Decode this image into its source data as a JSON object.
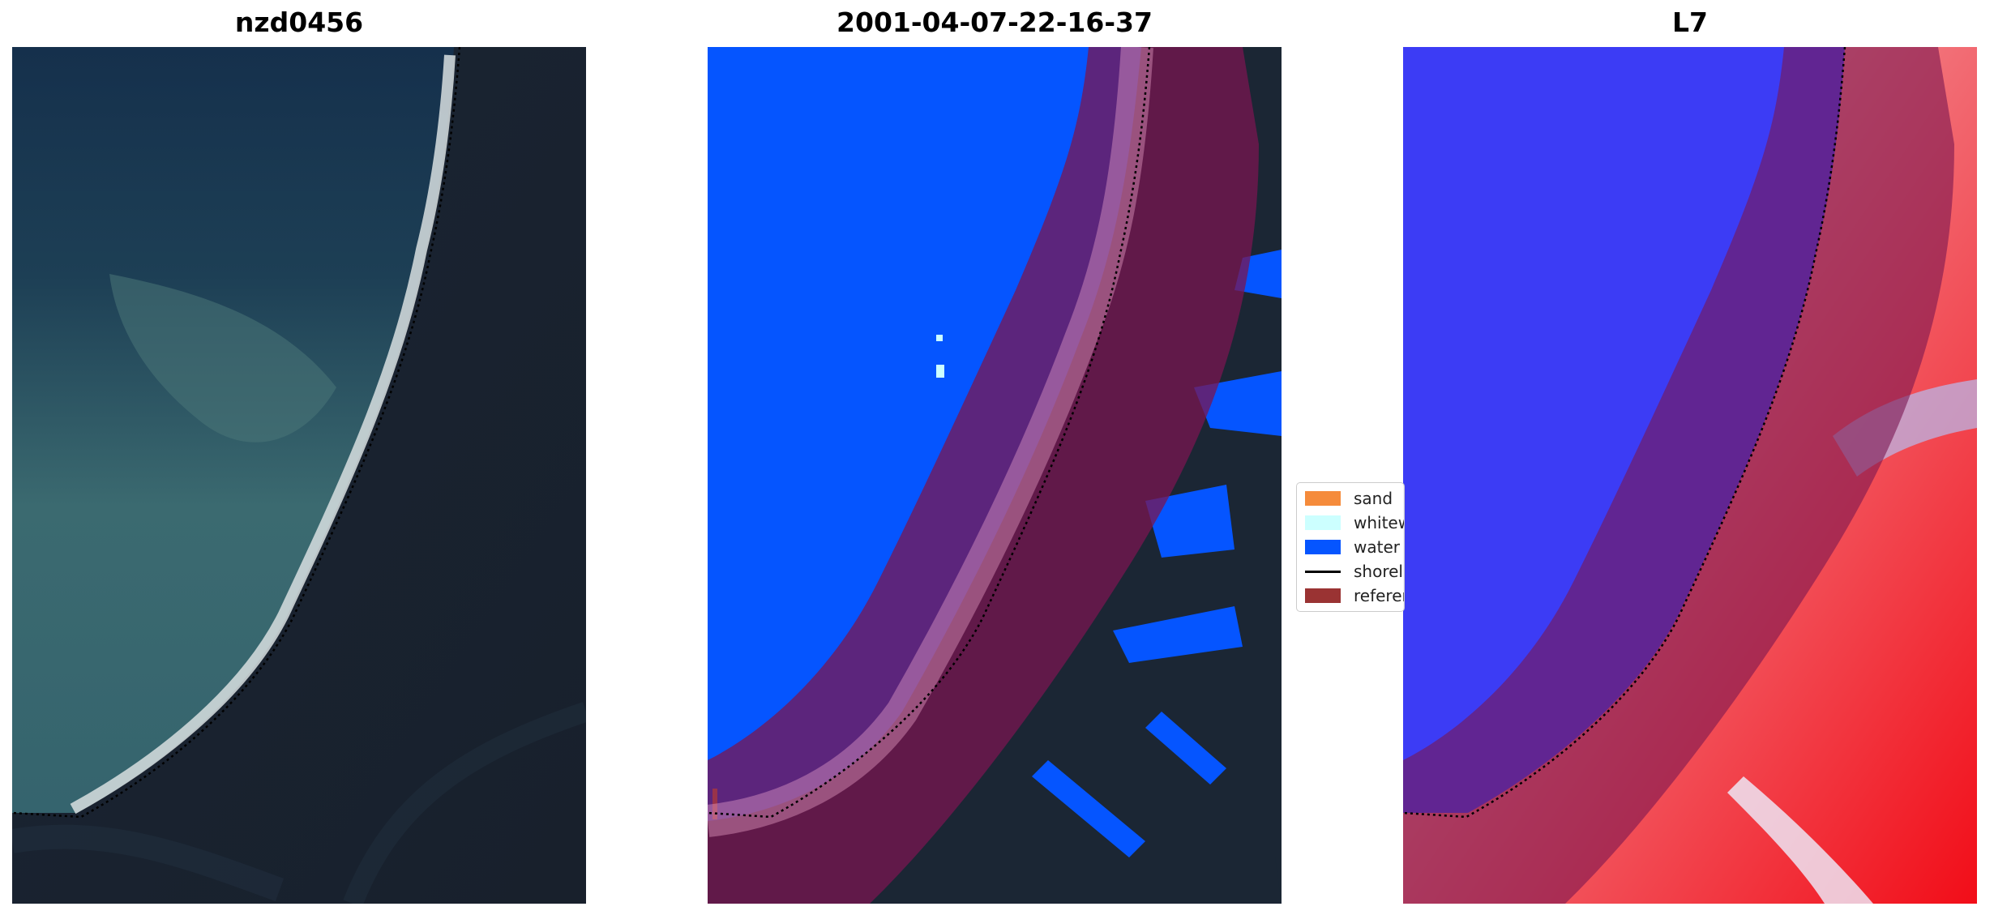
{
  "panels": {
    "left": {
      "title": "nzd0456"
    },
    "middle": {
      "title": "2001-04-07-22-16-37"
    },
    "right": {
      "title": "L7"
    }
  },
  "legend": {
    "items": [
      {
        "label": "sand",
        "color": "#f58b3b"
      },
      {
        "label": "whitew",
        "color": "#ccffff"
      },
      {
        "label": "water",
        "color": "#0555ff"
      },
      {
        "label": "shorel",
        "color": "#000000"
      },
      {
        "label": "referen",
        "color": "#9a3333"
      }
    ]
  },
  "colors": {
    "ocean_dark": "#16304a",
    "ocean_turquoise": "#3d6e73",
    "land_dark": "#1d2a38",
    "water_class": "#0555ff",
    "reference_buffer": "#7a1550",
    "index_blue": "#3a3af5",
    "index_red": "#f2606a"
  }
}
